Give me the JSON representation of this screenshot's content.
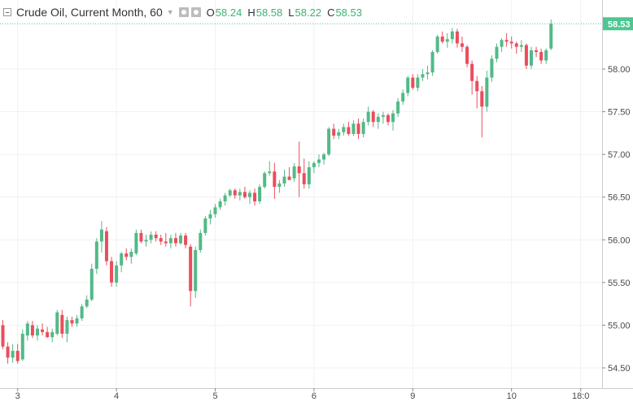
{
  "header": {
    "symbol": "Crude Oil, Current Month, 60",
    "open_label": "O",
    "open": "58.24",
    "high_label": "H",
    "high": "58.58",
    "low_label": "L",
    "low": "58.22",
    "close_label": "C",
    "close": "58.53"
  },
  "colors": {
    "up": "#53b987",
    "down": "#eb4d5c",
    "grid": "#eef1f4",
    "last_price": "#4bc78f"
  },
  "chart_data": {
    "type": "candlestick",
    "last_price": 58.53,
    "y_ticks": [
      "54.50",
      "55.00",
      "55.50",
      "56.00",
      "56.50",
      "57.00",
      "57.50",
      "58.00",
      "58.53"
    ],
    "y_tick_values": [
      54.5,
      55.0,
      55.5,
      56.0,
      56.5,
      57.0,
      57.5,
      58.0
    ],
    "ylim": [
      54.28,
      58.78
    ],
    "x_ticks": [
      {
        "label": "3",
        "index": 3
      },
      {
        "label": "4",
        "index": 23
      },
      {
        "label": "5",
        "index": 43
      },
      {
        "label": "6",
        "index": 63
      },
      {
        "label": "9",
        "index": 83
      },
      {
        "label": "10",
        "index": 103
      },
      {
        "label": "18:0",
        "index": 117
      }
    ],
    "candles": [
      [
        55.0,
        55.06,
        54.72,
        54.75
      ],
      [
        54.75,
        54.8,
        54.55,
        54.62
      ],
      [
        54.62,
        54.78,
        54.56,
        54.7
      ],
      [
        54.7,
        54.78,
        54.55,
        54.58
      ],
      [
        54.6,
        54.95,
        54.58,
        54.9
      ],
      [
        54.88,
        55.05,
        54.82,
        55.02
      ],
      [
        55.0,
        55.05,
        54.85,
        54.88
      ],
      [
        54.88,
        55.0,
        54.82,
        54.96
      ],
      [
        54.95,
        55.02,
        54.88,
        54.92
      ],
      [
        54.92,
        54.98,
        54.85,
        54.86
      ],
      [
        54.86,
        54.96,
        54.8,
        54.92
      ],
      [
        54.9,
        55.18,
        54.88,
        55.15
      ],
      [
        55.12,
        55.18,
        54.85,
        54.9
      ],
      [
        54.9,
        55.1,
        54.8,
        55.06
      ],
      [
        55.06,
        55.1,
        54.98,
        55.02
      ],
      [
        55.02,
        55.12,
        54.98,
        55.08
      ],
      [
        55.08,
        55.25,
        55.05,
        55.22
      ],
      [
        55.22,
        55.35,
        55.2,
        55.3
      ],
      [
        55.3,
        55.72,
        55.28,
        55.66
      ],
      [
        55.66,
        56.02,
        55.6,
        55.98
      ],
      [
        55.98,
        56.22,
        55.85,
        56.12
      ],
      [
        56.1,
        56.15,
        55.7,
        55.75
      ],
      [
        55.75,
        55.8,
        55.45,
        55.5
      ],
      [
        55.5,
        55.75,
        55.45,
        55.7
      ],
      [
        55.7,
        55.86,
        55.62,
        55.84
      ],
      [
        55.84,
        55.9,
        55.76,
        55.8
      ],
      [
        55.8,
        55.9,
        55.72,
        55.86
      ],
      [
        55.84,
        56.12,
        55.82,
        56.08
      ],
      [
        56.08,
        56.12,
        55.96,
        55.98
      ],
      [
        55.98,
        56.06,
        55.92,
        56.0
      ],
      [
        56.0,
        56.1,
        55.96,
        56.06
      ],
      [
        56.06,
        56.1,
        55.98,
        56.02
      ],
      [
        56.02,
        56.06,
        55.94,
        55.98
      ],
      [
        55.98,
        56.08,
        55.92,
        55.96
      ],
      [
        55.96,
        56.06,
        55.9,
        56.02
      ],
      [
        56.02,
        56.08,
        55.92,
        55.96
      ],
      [
        55.96,
        56.08,
        55.94,
        56.05
      ],
      [
        56.05,
        56.08,
        55.9,
        55.94
      ],
      [
        55.92,
        55.95,
        55.22,
        55.4
      ],
      [
        55.4,
        55.92,
        55.32,
        55.88
      ],
      [
        55.88,
        56.12,
        55.85,
        56.08
      ],
      [
        56.08,
        56.28,
        56.05,
        56.25
      ],
      [
        56.25,
        56.35,
        56.18,
        56.3
      ],
      [
        56.3,
        56.42,
        56.26,
        56.38
      ],
      [
        56.38,
        56.48,
        56.35,
        56.45
      ],
      [
        56.45,
        56.55,
        56.4,
        56.52
      ],
      [
        56.52,
        56.6,
        56.5,
        56.58
      ],
      [
        56.58,
        56.6,
        56.48,
        56.52
      ],
      [
        56.52,
        56.6,
        56.46,
        56.56
      ],
      [
        56.56,
        56.62,
        56.48,
        56.5
      ],
      [
        56.5,
        56.58,
        56.42,
        56.55
      ],
      [
        56.55,
        56.6,
        56.4,
        56.45
      ],
      [
        56.45,
        56.65,
        56.42,
        56.62
      ],
      [
        56.62,
        56.8,
        56.6,
        56.78
      ],
      [
        56.78,
        56.92,
        56.75,
        56.8
      ],
      [
        56.8,
        56.9,
        56.48,
        56.62
      ],
      [
        56.62,
        56.7,
        56.55,
        56.66
      ],
      [
        56.66,
        56.82,
        56.62,
        56.74
      ],
      [
        56.74,
        56.85,
        56.7,
        56.7
      ],
      [
        56.72,
        56.9,
        56.68,
        56.86
      ],
      [
        56.86,
        57.15,
        56.5,
        56.78
      ],
      [
        56.78,
        56.95,
        56.6,
        56.65
      ],
      [
        56.65,
        56.92,
        56.6,
        56.85
      ],
      [
        56.85,
        56.92,
        56.78,
        56.9
      ],
      [
        56.9,
        57.0,
        56.85,
        56.94
      ],
      [
        56.94,
        57.02,
        56.88,
        57.0
      ],
      [
        57.0,
        57.32,
        56.98,
        57.3
      ],
      [
        57.3,
        57.36,
        57.18,
        57.22
      ],
      [
        57.22,
        57.3,
        57.18,
        57.26
      ],
      [
        57.26,
        57.36,
        57.22,
        57.32
      ],
      [
        57.32,
        57.38,
        57.22,
        57.24
      ],
      [
        57.24,
        57.4,
        57.22,
        57.36
      ],
      [
        57.36,
        57.42,
        57.18,
        57.24
      ],
      [
        57.24,
        57.42,
        57.2,
        57.38
      ],
      [
        57.38,
        57.56,
        57.34,
        57.5
      ],
      [
        57.5,
        57.52,
        57.32,
        57.38
      ],
      [
        57.38,
        57.48,
        57.3,
        57.44
      ],
      [
        57.44,
        57.5,
        57.36,
        57.46
      ],
      [
        57.46,
        57.48,
        57.34,
        57.38
      ],
      [
        57.38,
        57.52,
        57.28,
        57.48
      ],
      [
        57.48,
        57.66,
        57.44,
        57.62
      ],
      [
        57.62,
        57.76,
        57.58,
        57.72
      ],
      [
        57.72,
        57.92,
        57.68,
        57.9
      ],
      [
        57.9,
        57.94,
        57.76,
        57.78
      ],
      [
        57.78,
        57.94,
        57.74,
        57.9
      ],
      [
        57.9,
        58.0,
        57.86,
        57.94
      ],
      [
        57.94,
        58.04,
        57.88,
        57.96
      ],
      [
        57.96,
        58.22,
        57.92,
        58.2
      ],
      [
        58.2,
        58.4,
        58.18,
        58.38
      ],
      [
        58.38,
        58.44,
        58.3,
        58.32
      ],
      [
        58.32,
        58.42,
        58.25,
        58.35
      ],
      [
        58.35,
        58.48,
        58.3,
        58.44
      ],
      [
        58.44,
        58.47,
        58.25,
        58.3
      ],
      [
        58.3,
        58.38,
        58.2,
        58.26
      ],
      [
        58.26,
        58.28,
        58.02,
        58.06
      ],
      [
        58.06,
        58.1,
        57.7,
        57.86
      ],
      [
        57.86,
        57.92,
        57.54,
        57.74
      ],
      [
        57.74,
        57.8,
        57.2,
        57.56
      ],
      [
        57.56,
        57.98,
        57.5,
        57.9
      ],
      [
        57.9,
        58.16,
        57.85,
        58.12
      ],
      [
        58.12,
        58.3,
        58.08,
        58.26
      ],
      [
        58.26,
        58.36,
        58.2,
        58.34
      ],
      [
        58.34,
        58.42,
        58.26,
        58.32
      ],
      [
        58.32,
        58.38,
        58.24,
        58.3
      ],
      [
        58.3,
        58.32,
        58.18,
        58.26
      ],
      [
        58.26,
        58.34,
        58.2,
        58.28
      ],
      [
        58.28,
        58.3,
        58.0,
        58.04
      ],
      [
        58.04,
        58.26,
        58.0,
        58.22
      ],
      [
        58.22,
        58.26,
        58.14,
        58.2
      ],
      [
        58.2,
        58.24,
        58.06,
        58.1
      ],
      [
        58.1,
        58.24,
        58.06,
        58.22
      ],
      [
        58.24,
        58.58,
        58.22,
        58.53
      ]
    ]
  }
}
